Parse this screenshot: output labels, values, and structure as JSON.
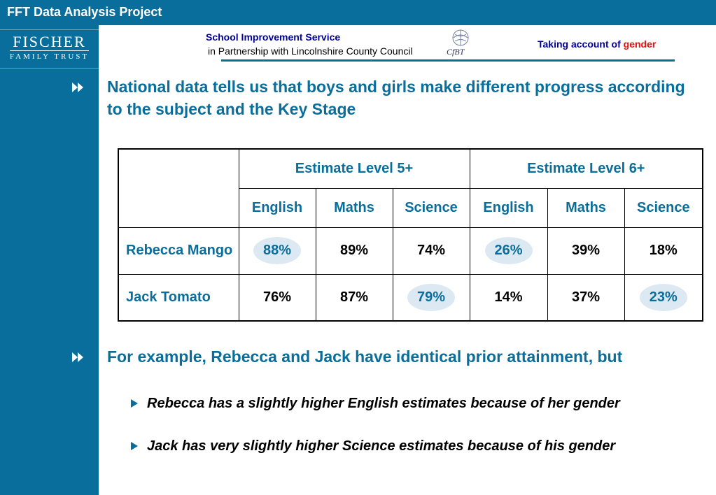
{
  "header": {
    "title": "FFT Data Analysis Project",
    "logo_line1": "FISCHER",
    "logo_line2": "FAMILY TRUST",
    "partner_line1": "School Improvement Service",
    "partner_line2": "in Partnership with Lincolnshire County Council",
    "cfbt_logo": "CfBT",
    "right_prefix": "Taking account of",
    "right_accent": "gender"
  },
  "main": {
    "point1": "National data tells us that boys and girls make different progress according to the subject and the Key Stage",
    "point2": "For example, Rebecca and Jack have identical prior attainment, but",
    "sub1": "Rebecca has a slightly higher English estimates because of her gender",
    "sub2": "Jack has very slightly higher Science estimates because of his gender"
  },
  "table": {
    "group_headers": [
      "Estimate Level 5+",
      "Estimate Level 6+"
    ],
    "subject_headers": [
      "English",
      "Maths",
      "Science",
      "English",
      "Maths",
      "Science"
    ],
    "rows": [
      {
        "name": "Rebecca Mango",
        "values": [
          "88%",
          "89%",
          "74%",
          "26%",
          "39%",
          "18%"
        ]
      },
      {
        "name": "Jack Tomato",
        "values": [
          "76%",
          "87%",
          "79%",
          "14%",
          "37%",
          "23%"
        ]
      }
    ]
  },
  "colors": {
    "brand": "#0a6e9c",
    "accent": "#e01010",
    "highlight": "#dce9f2"
  },
  "icons": [
    "double-chevron-right-icon",
    "triangle-bullet-icon"
  ]
}
